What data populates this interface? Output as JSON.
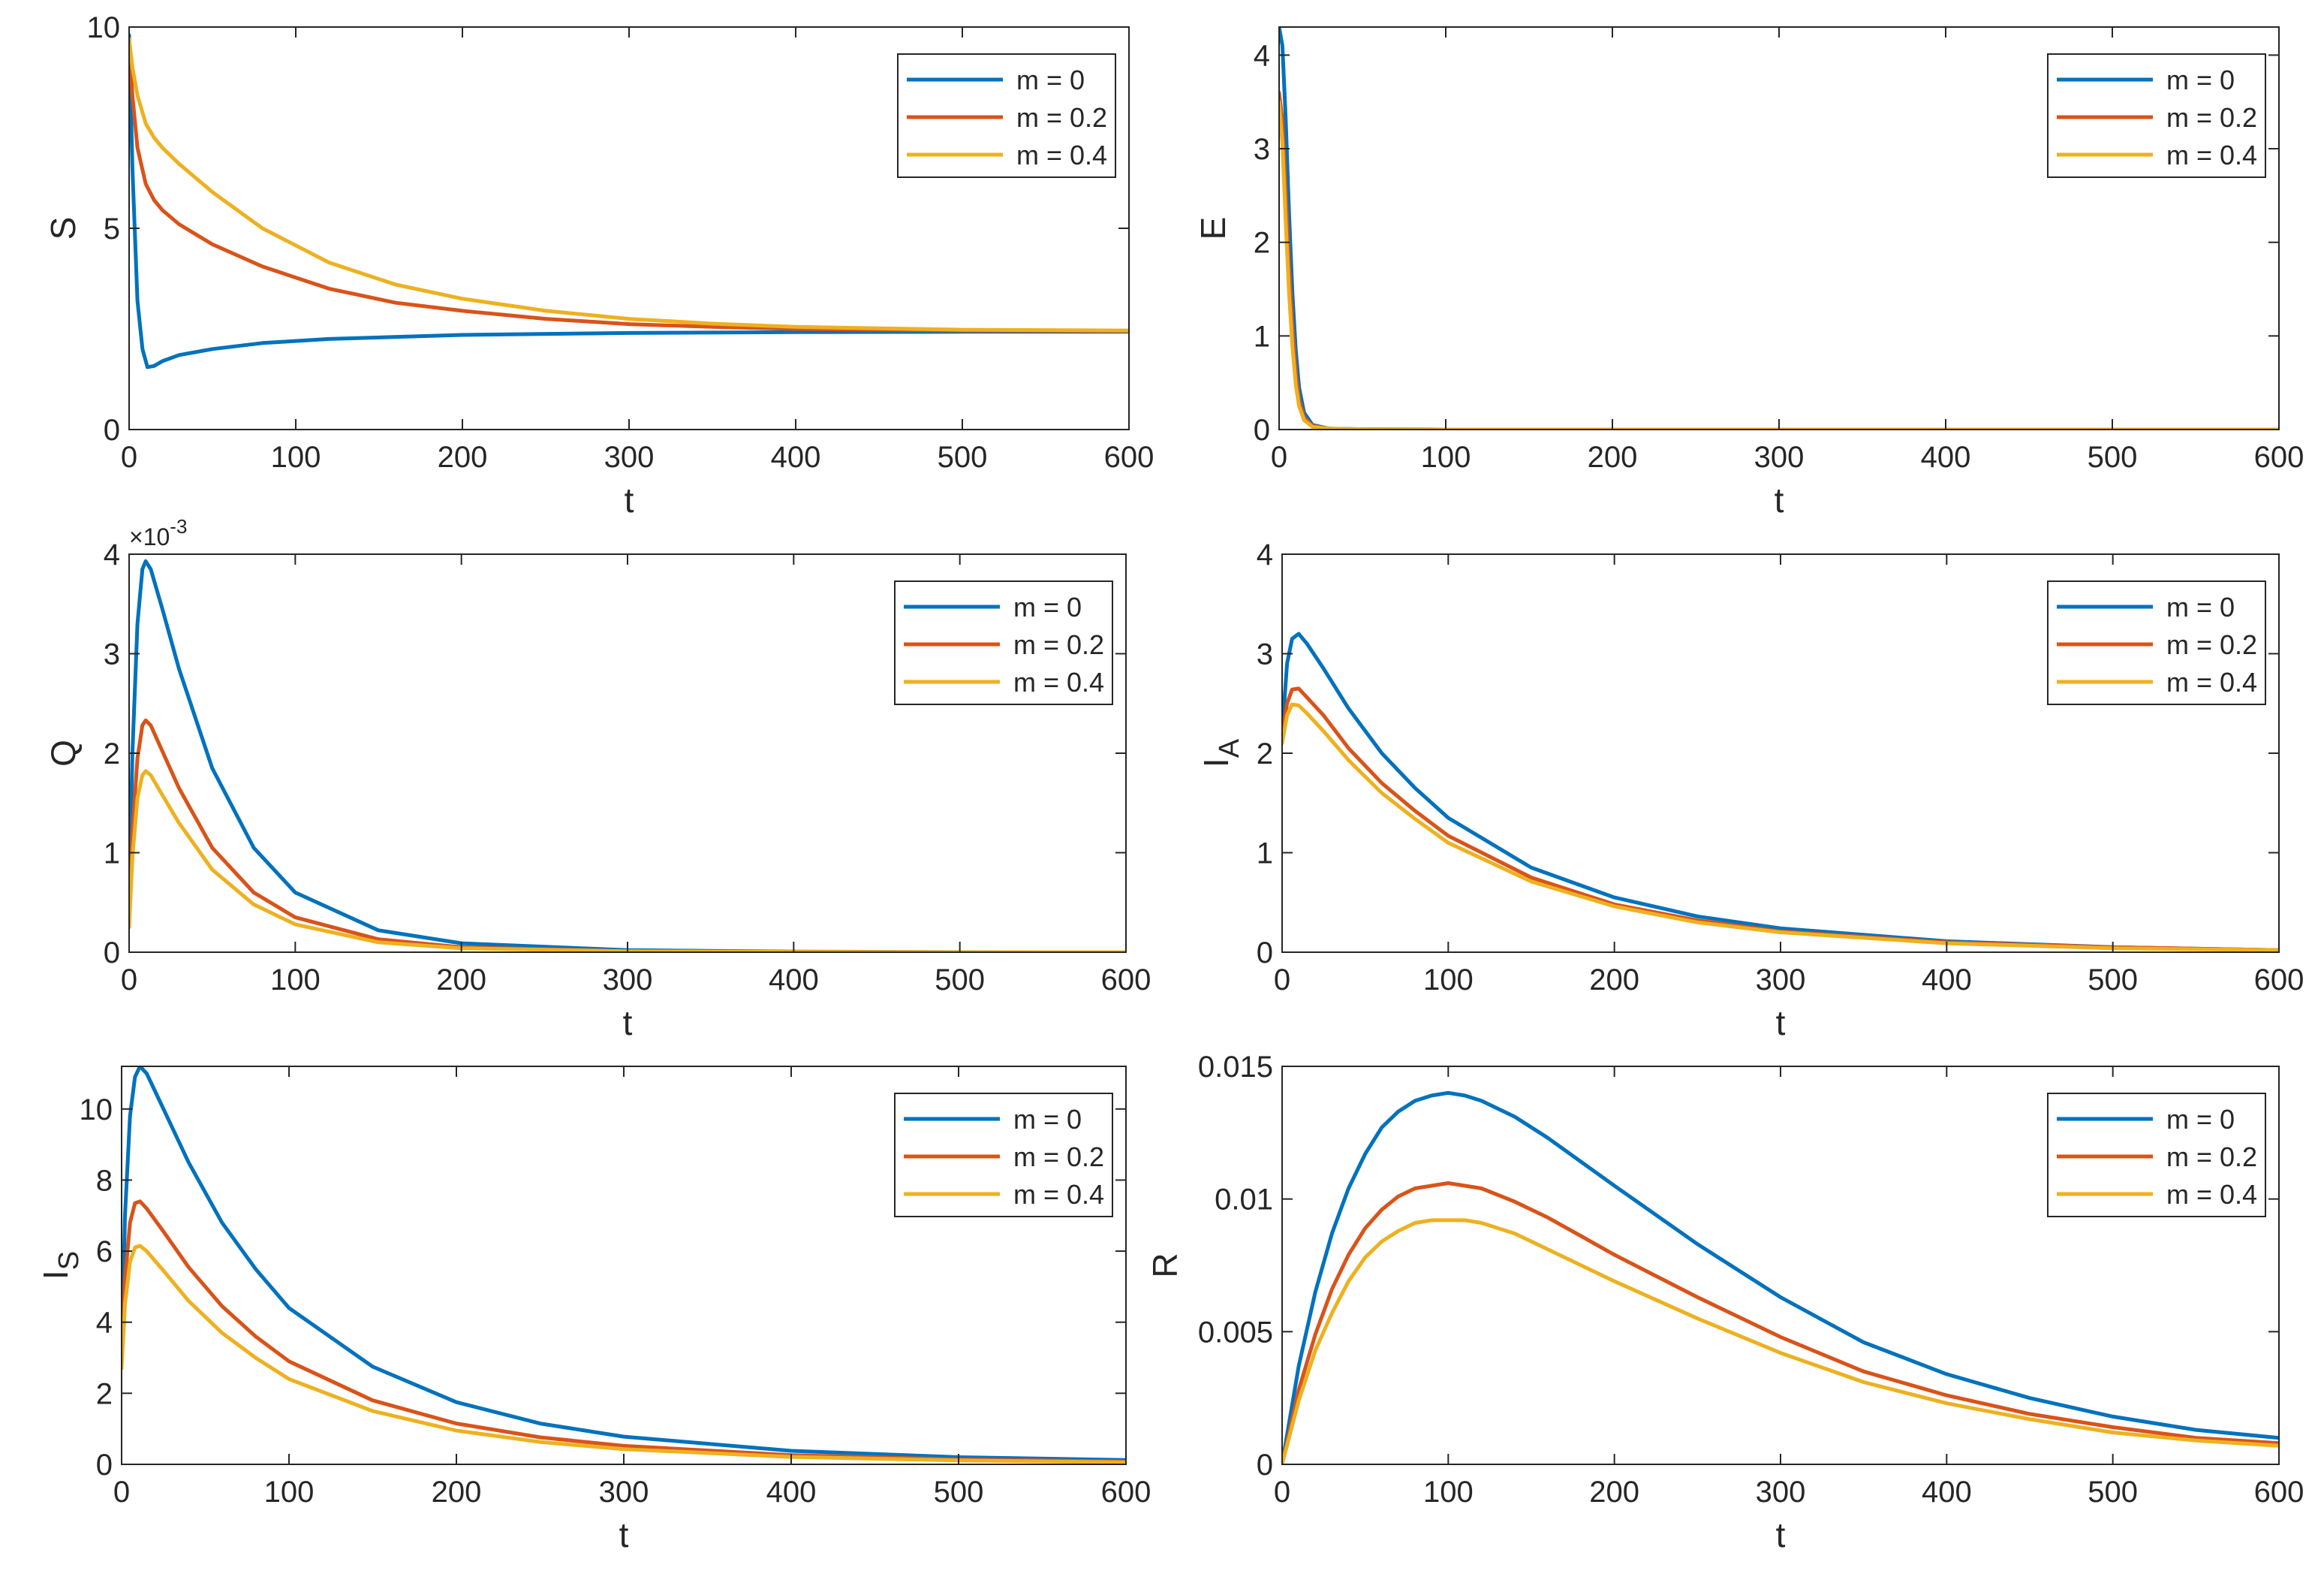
{
  "figure": {
    "colors": {
      "m = 0": "#0072BD",
      "m = 0.2": "#D95319",
      "m = 0.4": "#EDB120",
      "axis": "#262626",
      "background": "#ffffff"
    }
  },
  "chart_data": [
    {
      "id": "S",
      "type": "line",
      "title": "",
      "xlabel": "t",
      "ylabel": "S",
      "ylabel_sub": "",
      "xlim": [
        0,
        600
      ],
      "ylim": [
        0,
        10
      ],
      "xticks": [
        0,
        100,
        200,
        300,
        400,
        500,
        600
      ],
      "yticks": [
        0,
        5,
        10
      ],
      "ytick_labels": [
        "0",
        "5",
        "10"
      ],
      "exponent_label": "",
      "legend": [
        "m = 0",
        "m = 0.2",
        "m = 0.4"
      ],
      "legend_position": "top-right",
      "series": [
        {
          "name": "m = 0",
          "x": [
            0,
            2,
            5,
            8,
            11,
            15,
            20,
            30,
            50,
            80,
            120,
            200,
            300,
            400,
            500,
            600
          ],
          "y": [
            9.8,
            6.5,
            3.2,
            2.0,
            1.55,
            1.58,
            1.7,
            1.85,
            2.0,
            2.15,
            2.25,
            2.35,
            2.4,
            2.42,
            2.43,
            2.43
          ]
        },
        {
          "name": "m = 0.2",
          "x": [
            0,
            2,
            5,
            10,
            15,
            20,
            30,
            50,
            80,
            120,
            160,
            200,
            250,
            300,
            350,
            400,
            500,
            600
          ],
          "y": [
            9.7,
            8.3,
            7.0,
            6.1,
            5.7,
            5.45,
            5.1,
            4.6,
            4.05,
            3.5,
            3.15,
            2.95,
            2.75,
            2.62,
            2.55,
            2.5,
            2.46,
            2.45
          ]
        },
        {
          "name": "m = 0.4",
          "x": [
            0,
            2,
            5,
            10,
            15,
            20,
            30,
            50,
            80,
            120,
            160,
            200,
            250,
            300,
            350,
            400,
            500,
            600
          ],
          "y": [
            9.7,
            9.0,
            8.3,
            7.6,
            7.25,
            7.0,
            6.6,
            5.9,
            5.0,
            4.15,
            3.6,
            3.25,
            2.95,
            2.75,
            2.63,
            2.55,
            2.48,
            2.46
          ]
        }
      ]
    },
    {
      "id": "E",
      "type": "line",
      "title": "",
      "xlabel": "t",
      "ylabel": "E",
      "ylabel_sub": "",
      "xlim": [
        0,
        600
      ],
      "ylim": [
        0,
        4.3
      ],
      "xticks": [
        0,
        100,
        200,
        300,
        400,
        500,
        600
      ],
      "yticks": [
        0,
        1,
        2,
        3,
        4
      ],
      "ytick_labels": [
        "0",
        "1",
        "2",
        "3",
        "4"
      ],
      "exponent_label": "",
      "legend": [
        "m = 0",
        "m = 0.2",
        "m = 0.4"
      ],
      "legend_position": "top-right",
      "series": [
        {
          "name": "m = 0",
          "x": [
            0,
            2,
            4,
            6,
            8,
            10,
            12,
            15,
            20,
            30,
            50,
            100,
            600
          ],
          "y": [
            4.3,
            4.1,
            3.3,
            2.3,
            1.45,
            0.85,
            0.45,
            0.18,
            0.05,
            0.01,
            0.003,
            0.0,
            0.0
          ]
        },
        {
          "name": "m = 0.2",
          "x": [
            0,
            2,
            4,
            6,
            8,
            10,
            12,
            15,
            20,
            30,
            50,
            100,
            600
          ],
          "y": [
            3.6,
            3.3,
            2.55,
            1.75,
            1.1,
            0.62,
            0.32,
            0.13,
            0.04,
            0.01,
            0.003,
            0.0,
            0.0
          ]
        },
        {
          "name": "m = 0.4",
          "x": [
            0,
            2,
            4,
            6,
            8,
            10,
            12,
            15,
            20,
            30,
            50,
            100,
            600
          ],
          "y": [
            3.5,
            3.05,
            2.2,
            1.45,
            0.88,
            0.48,
            0.25,
            0.1,
            0.03,
            0.01,
            0.002,
            0.0,
            0.0
          ]
        }
      ]
    },
    {
      "id": "Q",
      "type": "line",
      "title": "",
      "xlabel": "t",
      "ylabel": "Q",
      "ylabel_sub": "",
      "xlim": [
        0,
        600
      ],
      "ylim": [
        0,
        4
      ],
      "xticks": [
        0,
        100,
        200,
        300,
        400,
        500,
        600
      ],
      "yticks": [
        0,
        1,
        2,
        3,
        4
      ],
      "ytick_labels": [
        "0",
        "1",
        "2",
        "3",
        "4"
      ],
      "exponent_label": "×10",
      "exponent_power": "-3",
      "legend": [
        "m = 0",
        "m = 0.2",
        "m = 0.4"
      ],
      "legend_position": "top-right",
      "series": [
        {
          "name": "m = 0",
          "x": [
            0,
            2,
            5,
            8,
            10,
            13,
            20,
            30,
            50,
            75,
            100,
            150,
            200,
            300,
            400,
            500,
            600
          ],
          "y": [
            0.5,
            2.0,
            3.3,
            3.85,
            3.93,
            3.85,
            3.45,
            2.85,
            1.85,
            1.05,
            0.6,
            0.22,
            0.09,
            0.02,
            0.005,
            0.001,
            0.0
          ]
        },
        {
          "name": "m = 0.2",
          "x": [
            0,
            2,
            5,
            8,
            10,
            13,
            20,
            30,
            50,
            75,
            100,
            150,
            200,
            300,
            400,
            500,
            600
          ],
          "y": [
            0.3,
            1.2,
            1.95,
            2.28,
            2.33,
            2.28,
            2.02,
            1.65,
            1.05,
            0.6,
            0.35,
            0.13,
            0.05,
            0.01,
            0.003,
            0.0,
            0.0
          ]
        },
        {
          "name": "m = 0.4",
          "x": [
            0,
            2,
            5,
            8,
            10,
            13,
            20,
            30,
            50,
            75,
            100,
            150,
            200,
            300,
            400,
            500,
            600
          ],
          "y": [
            0.25,
            0.95,
            1.55,
            1.78,
            1.82,
            1.78,
            1.58,
            1.3,
            0.83,
            0.48,
            0.28,
            0.1,
            0.04,
            0.01,
            0.002,
            0.0,
            0.0
          ]
        }
      ]
    },
    {
      "id": "IA",
      "type": "line",
      "title": "",
      "xlabel": "t",
      "ylabel": "I",
      "ylabel_sub": "A",
      "xlim": [
        0,
        600
      ],
      "ylim": [
        0,
        4
      ],
      "xticks": [
        0,
        100,
        200,
        300,
        400,
        500,
        600
      ],
      "yticks": [
        0,
        1,
        2,
        3,
        4
      ],
      "ytick_labels": [
        "0",
        "1",
        "2",
        "3",
        "4"
      ],
      "exponent_label": "",
      "legend": [
        "m = 0",
        "m = 0.2",
        "m = 0.4"
      ],
      "legend_position": "top-right",
      "series": [
        {
          "name": "m = 0",
          "x": [
            0,
            3,
            6,
            10,
            15,
            25,
            40,
            60,
            80,
            100,
            150,
            200,
            250,
            300,
            400,
            500,
            600
          ],
          "y": [
            2.2,
            2.9,
            3.15,
            3.2,
            3.1,
            2.85,
            2.45,
            2.0,
            1.65,
            1.35,
            0.85,
            0.55,
            0.36,
            0.24,
            0.11,
            0.05,
            0.02
          ]
        },
        {
          "name": "m = 0.2",
          "x": [
            0,
            3,
            6,
            10,
            15,
            25,
            40,
            60,
            80,
            100,
            150,
            200,
            250,
            300,
            400,
            500,
            600
          ],
          "y": [
            2.15,
            2.5,
            2.64,
            2.65,
            2.56,
            2.38,
            2.05,
            1.7,
            1.42,
            1.17,
            0.75,
            0.48,
            0.32,
            0.21,
            0.1,
            0.05,
            0.02
          ]
        },
        {
          "name": "m = 0.4",
          "x": [
            0,
            3,
            6,
            10,
            15,
            25,
            40,
            60,
            80,
            100,
            150,
            200,
            250,
            300,
            400,
            500,
            600
          ],
          "y": [
            2.1,
            2.38,
            2.49,
            2.48,
            2.4,
            2.22,
            1.93,
            1.6,
            1.34,
            1.1,
            0.71,
            0.46,
            0.3,
            0.2,
            0.09,
            0.04,
            0.02
          ]
        }
      ]
    },
    {
      "id": "IS",
      "type": "line",
      "title": "",
      "xlabel": "t",
      "ylabel": "I",
      "ylabel_sub": "S",
      "xlim": [
        0,
        600
      ],
      "ylim": [
        0,
        11.2
      ],
      "xticks": [
        0,
        100,
        200,
        300,
        400,
        500,
        600
      ],
      "yticks": [
        0,
        2,
        4,
        6,
        8,
        10
      ],
      "ytick_labels": [
        "0",
        "2",
        "4",
        "6",
        "8",
        "10"
      ],
      "exponent_label": "",
      "legend": [
        "m = 0",
        "m = 0.2",
        "m = 0.4"
      ],
      "legend_position": "top-right",
      "series": [
        {
          "name": "m = 0",
          "x": [
            0,
            2,
            5,
            8,
            11,
            15,
            25,
            40,
            60,
            80,
            100,
            150,
            200,
            250,
            300,
            400,
            500,
            600
          ],
          "y": [
            3.0,
            7.0,
            9.8,
            10.9,
            11.2,
            11.0,
            10.0,
            8.5,
            6.8,
            5.5,
            4.4,
            2.75,
            1.75,
            1.15,
            0.78,
            0.38,
            0.2,
            0.12
          ]
        },
        {
          "name": "m = 0.2",
          "x": [
            0,
            2,
            5,
            8,
            11,
            15,
            25,
            40,
            60,
            80,
            100,
            150,
            200,
            250,
            300,
            400,
            500,
            600
          ],
          "y": [
            2.8,
            5.2,
            6.8,
            7.35,
            7.4,
            7.2,
            6.55,
            5.55,
            4.45,
            3.6,
            2.9,
            1.8,
            1.15,
            0.76,
            0.52,
            0.26,
            0.14,
            0.08
          ]
        },
        {
          "name": "m = 0.4",
          "x": [
            0,
            2,
            5,
            8,
            11,
            15,
            25,
            40,
            60,
            80,
            100,
            150,
            200,
            250,
            300,
            400,
            500,
            600
          ],
          "y": [
            2.7,
            4.5,
            5.7,
            6.1,
            6.15,
            6.0,
            5.45,
            4.6,
            3.7,
            3.0,
            2.4,
            1.5,
            0.95,
            0.63,
            0.43,
            0.21,
            0.11,
            0.06
          ]
        }
      ]
    },
    {
      "id": "R",
      "type": "line",
      "title": "",
      "xlabel": "t",
      "ylabel": "R",
      "ylabel_sub": "",
      "xlim": [
        0,
        600
      ],
      "ylim": [
        0,
        0.015
      ],
      "xticks": [
        0,
        100,
        200,
        300,
        400,
        500,
        600
      ],
      "yticks": [
        0,
        0.005,
        0.01,
        0.015
      ],
      "ytick_labels": [
        "0",
        "0.005",
        "0.01",
        "0.015"
      ],
      "exponent_label": "",
      "legend": [
        "m = 0",
        "m = 0.2",
        "m = 0.4"
      ],
      "legend_position": "top-right",
      "series": [
        {
          "name": "m = 0",
          "x": [
            0,
            10,
            20,
            30,
            40,
            50,
            60,
            70,
            80,
            90,
            100,
            110,
            120,
            140,
            160,
            180,
            200,
            250,
            300,
            350,
            400,
            450,
            500,
            550,
            600
          ],
          "y": [
            0.0,
            0.0037,
            0.0065,
            0.0087,
            0.0104,
            0.0117,
            0.0127,
            0.0133,
            0.0137,
            0.0139,
            0.014,
            0.0139,
            0.0137,
            0.0131,
            0.0123,
            0.0114,
            0.0105,
            0.0083,
            0.0063,
            0.0046,
            0.0034,
            0.0025,
            0.0018,
            0.0013,
            0.001
          ]
        },
        {
          "name": "m = 0.2",
          "x": [
            0,
            10,
            20,
            30,
            40,
            50,
            60,
            70,
            80,
            90,
            100,
            110,
            120,
            140,
            160,
            180,
            200,
            250,
            300,
            350,
            400,
            450,
            500,
            550,
            600
          ],
          "y": [
            0.0,
            0.0028,
            0.0049,
            0.0066,
            0.0079,
            0.0089,
            0.0096,
            0.0101,
            0.0104,
            0.0105,
            0.0106,
            0.0105,
            0.0104,
            0.0099,
            0.0093,
            0.0086,
            0.0079,
            0.0063,
            0.0048,
            0.0035,
            0.0026,
            0.0019,
            0.0014,
            0.001,
            0.0008
          ]
        },
        {
          "name": "m = 0.4",
          "x": [
            0,
            10,
            20,
            30,
            40,
            50,
            60,
            70,
            80,
            90,
            100,
            110,
            120,
            140,
            160,
            180,
            200,
            250,
            300,
            350,
            400,
            450,
            500,
            550,
            600
          ],
          "y": [
            0.0,
            0.0024,
            0.0043,
            0.0057,
            0.0069,
            0.0078,
            0.0084,
            0.0088,
            0.0091,
            0.0092,
            0.0092,
            0.0092,
            0.0091,
            0.0087,
            0.0081,
            0.0075,
            0.0069,
            0.0055,
            0.0042,
            0.0031,
            0.0023,
            0.0017,
            0.0012,
            0.0009,
            0.0007
          ]
        }
      ]
    }
  ]
}
